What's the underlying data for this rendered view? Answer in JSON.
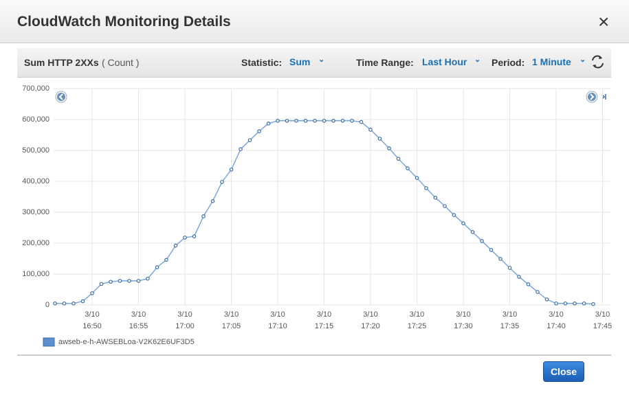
{
  "header": {
    "title": "CloudWatch Monitoring Details",
    "close_icon": "×"
  },
  "toolbar": {
    "metric": "Sum HTTP 2XXs",
    "unit": "( Count )",
    "statistic_label": "Statistic:",
    "statistic": "Sum",
    "time_range_label": "Time Range:",
    "time_range": "Last Hour",
    "period_label": "Period:",
    "period": "1 Minute"
  },
  "chart_data": {
    "type": "line",
    "grid": true,
    "x": [
      "16:46",
      "16:47",
      "16:48",
      "16:49",
      "16:50",
      "16:51",
      "16:52",
      "16:53",
      "16:54",
      "16:55",
      "16:56",
      "16:57",
      "16:58",
      "16:59",
      "17:00",
      "17:01",
      "17:02",
      "17:03",
      "17:04",
      "17:05",
      "17:06",
      "17:07",
      "17:08",
      "17:09",
      "17:10",
      "17:11",
      "17:12",
      "17:13",
      "17:14",
      "17:15",
      "17:16",
      "17:17",
      "17:18",
      "17:19",
      "17:20",
      "17:21",
      "17:22",
      "17:23",
      "17:24",
      "17:25",
      "17:26",
      "17:27",
      "17:28",
      "17:29",
      "17:30",
      "17:31",
      "17:32",
      "17:33",
      "17:34",
      "17:35",
      "17:36",
      "17:37",
      "17:38",
      "17:39",
      "17:40",
      "17:41",
      "17:42",
      "17:43",
      "17:44"
    ],
    "series": [
      {
        "name": "awseb-e-h-AWSEBLoa-V2K62E6UF3D5",
        "color": "#5b8fd0",
        "values": [
          5000,
          5000,
          5000,
          12000,
          38000,
          68000,
          75000,
          78000,
          78000,
          78000,
          85000,
          122000,
          146000,
          192000,
          218000,
          222000,
          287000,
          336000,
          398000,
          438000,
          504000,
          533000,
          562000,
          587000,
          596000,
          596000,
          596000,
          596000,
          596000,
          596000,
          596000,
          596000,
          596000,
          592000,
          567000,
          538000,
          507000,
          473000,
          442000,
          411000,
          378000,
          347000,
          320000,
          291000,
          264000,
          236000,
          207000,
          178000,
          149000,
          120000,
          91000,
          67000,
          42000,
          18000,
          5000,
          5000,
          5000,
          5000,
          3000
        ]
      }
    ],
    "xlim": [
      "16:46",
      "17:46"
    ],
    "xticks": [
      {
        "value": "16:50",
        "label": "3/10\n16:50"
      },
      {
        "value": "16:55",
        "label": "3/10\n16:55"
      },
      {
        "value": "17:00",
        "label": "3/10\n17:00"
      },
      {
        "value": "17:05",
        "label": "3/10\n17:05"
      },
      {
        "value": "17:10",
        "label": "3/10\n17:10"
      },
      {
        "value": "17:15",
        "label": "3/10\n17:15"
      },
      {
        "value": "17:20",
        "label": "3/10\n17:20"
      },
      {
        "value": "17:25",
        "label": "3/10\n17:25"
      },
      {
        "value": "17:30",
        "label": "3/10\n17:30"
      },
      {
        "value": "17:35",
        "label": "3/10\n17:35"
      },
      {
        "value": "17:40",
        "label": "3/10\n17:40"
      },
      {
        "value": "17:45",
        "label": "3/10\n17:45"
      }
    ],
    "ylim": [
      0,
      700000
    ],
    "yticks": [
      0,
      {
        "value": 100000,
        "label": "100,000"
      },
      {
        "value": 200000,
        "label": "200,000"
      },
      {
        "value": 300000,
        "label": "300,000"
      },
      {
        "value": 400000,
        "label": "400,000"
      },
      {
        "value": 500000,
        "label": "500,000"
      },
      {
        "value": 600000,
        "label": "600,000"
      },
      {
        "value": 700000,
        "label": "700,000"
      }
    ]
  },
  "footer": {
    "button": "Close"
  }
}
